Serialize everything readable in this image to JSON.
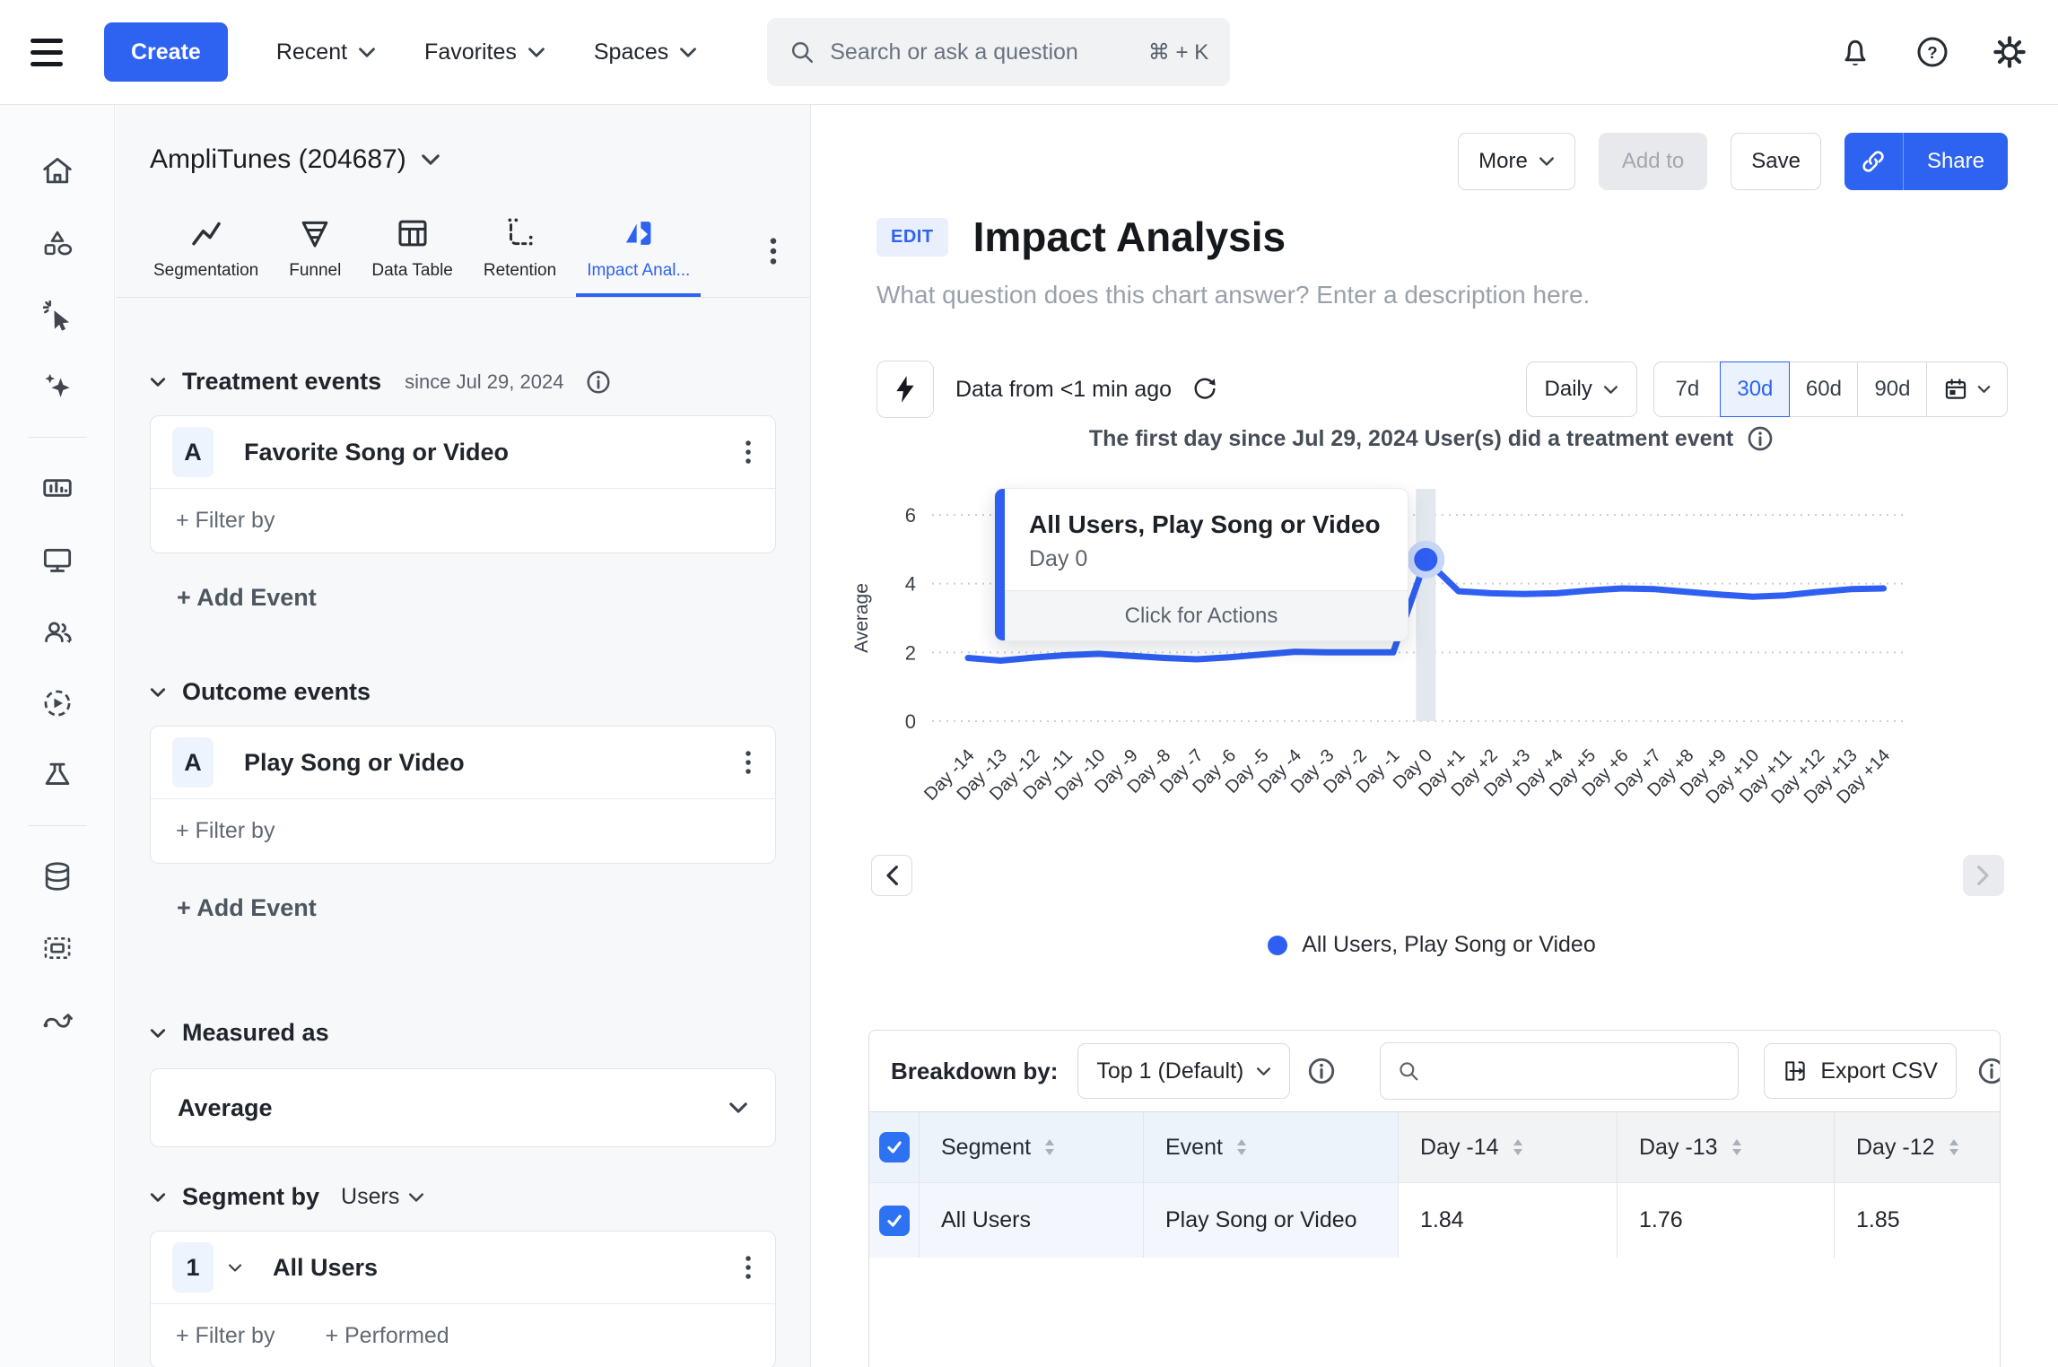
{
  "colors": {
    "accent": "#2e62f0",
    "chart_line": "#2e5ff2"
  },
  "topbar": {
    "create": "Create",
    "recent": "Recent",
    "favorites": "Favorites",
    "spaces": "Spaces",
    "search_placeholder": "Search or ask a question",
    "search_shortcut": "⌘ + K"
  },
  "sidebar": {
    "project": "AmpliTunes (204687)",
    "tabs": [
      {
        "label": "Segmentation"
      },
      {
        "label": "Funnel"
      },
      {
        "label": "Data Table"
      },
      {
        "label": "Retention"
      },
      {
        "label": "Impact Anal...",
        "selected": true
      }
    ],
    "treatment": {
      "title": "Treatment events",
      "since": "since Jul 29, 2024",
      "badge": "A",
      "event": "Favorite Song or Video",
      "filter": "+ Filter by",
      "add": "+ Add Event"
    },
    "outcome": {
      "title": "Outcome events",
      "badge": "A",
      "event": "Play Song or Video",
      "filter": "+ Filter by",
      "add": "+ Add Event"
    },
    "measured": {
      "title": "Measured as",
      "value": "Average"
    },
    "segment": {
      "title": "Segment by",
      "mode": "Users",
      "badge": "1",
      "name": "All Users",
      "filter": "+ Filter by",
      "performed": "+ Performed"
    }
  },
  "main": {
    "actions": {
      "more": "More",
      "add_to": "Add to",
      "save": "Save",
      "share": "Share"
    },
    "edit_badge": "EDIT",
    "title": "Impact Analysis",
    "description": "What question does this chart answer? Enter a description here.",
    "freshness": "Data from <1 min ago",
    "interval": "Daily",
    "ranges": [
      {
        "label": "7d"
      },
      {
        "label": "30d",
        "selected": true
      },
      {
        "label": "60d"
      },
      {
        "label": "90d"
      }
    ],
    "subtitle": "The first day since Jul 29, 2024 User(s) did a treatment event",
    "tooltip": {
      "title": "All Users, Play Song or Video",
      "subtitle": "Day 0",
      "action": "Click for Actions"
    },
    "legend": "All Users, Play Song or Video"
  },
  "chart_data": {
    "type": "line",
    "ylabel": "Average",
    "ylim": [
      0,
      6
    ],
    "yticks": [
      0,
      2,
      4,
      6
    ],
    "grid": true,
    "legend_position": "bottom",
    "highlight_category": "Day 0",
    "categories": [
      "Day -14",
      "Day -13",
      "Day -12",
      "Day -11",
      "Day -10",
      "Day -9",
      "Day -8",
      "Day -7",
      "Day -6",
      "Day -5",
      "Day -4",
      "Day -3",
      "Day -2",
      "Day -1",
      "Day 0",
      "Day +1",
      "Day +2",
      "Day +3",
      "Day +4",
      "Day +5",
      "Day +6",
      "Day +7",
      "Day +8",
      "Day +9",
      "Day +10",
      "Day +11",
      "Day +12",
      "Day +13",
      "Day +14"
    ],
    "series": [
      {
        "name": "All Users, Play Song or Video",
        "color": "#2e5ff2",
        "values": [
          1.84,
          1.76,
          1.85,
          1.92,
          1.96,
          1.9,
          1.84,
          1.8,
          1.86,
          1.94,
          2.02,
          2.0,
          2.0,
          2.0,
          4.7,
          3.78,
          3.72,
          3.7,
          3.72,
          3.8,
          3.86,
          3.84,
          3.76,
          3.68,
          3.62,
          3.66,
          3.76,
          3.84,
          3.86
        ]
      }
    ]
  },
  "breakdown": {
    "label": "Breakdown by:",
    "top_selector": "Top 1 (Default)",
    "export": "Export CSV",
    "table": {
      "columns": [
        "Segment",
        "Event",
        "Day -14",
        "Day -13",
        "Day -12"
      ],
      "rows": [
        {
          "checked": true,
          "segment": "All Users",
          "event": "Play Song or Video",
          "values": [
            "1.84",
            "1.76",
            "1.85"
          ]
        }
      ]
    }
  }
}
